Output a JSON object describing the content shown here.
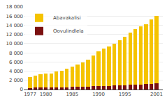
{
  "chart_data": {
    "type": "bar",
    "stacked": true,
    "x": [
      1977,
      1978,
      1979,
      1980,
      1981,
      1982,
      1983,
      1984,
      1985,
      1986,
      1987,
      1988,
      1989,
      1990,
      1991,
      1992,
      1993,
      1994,
      1995,
      1996,
      1997,
      1998,
      1999,
      2000,
      2001
    ],
    "series": [
      {
        "name": "Oovulindlela",
        "color": "#7B1010",
        "values": [
          350,
          380,
          400,
          420,
          440,
          460,
          480,
          510,
          540,
          570,
          600,
          640,
          690,
          740,
          780,
          820,
          860,
          900,
          960,
          1020,
          1080,
          1120,
          1160,
          1240,
          1300
        ]
      },
      {
        "name": "Abavakalisi",
        "color": "#F5C300",
        "values": [
          2400,
          2700,
          2900,
          3000,
          3100,
          3400,
          3600,
          4000,
          4400,
          4900,
          5300,
          5900,
          6700,
          7600,
          8100,
          8600,
          9100,
          9800,
          10600,
          11400,
          12100,
          12600,
          13100,
          14100,
          14800
        ]
      }
    ],
    "xlim": [
      1975.8,
      2002.2
    ],
    "xticks": [
      1977,
      1980,
      1985,
      1990,
      1995,
      2001
    ],
    "ylim": [
      0,
      18000
    ],
    "yticks": [
      0,
      {
        "value": 2000,
        "label": "2 000"
      },
      {
        "value": 4000,
        "label": "4 000"
      },
      {
        "value": 6000,
        "label": "6 000"
      },
      {
        "value": 8000,
        "label": "8 000"
      },
      {
        "value": 10000,
        "label": "10 000"
      },
      {
        "value": 12000,
        "label": "12 000"
      },
      {
        "value": 14000,
        "label": "14 000"
      },
      {
        "value": 16000,
        "label": "16 000"
      },
      {
        "value": 18000,
        "label": "18 000"
      }
    ],
    "grid": true,
    "legend": "upper left"
  }
}
